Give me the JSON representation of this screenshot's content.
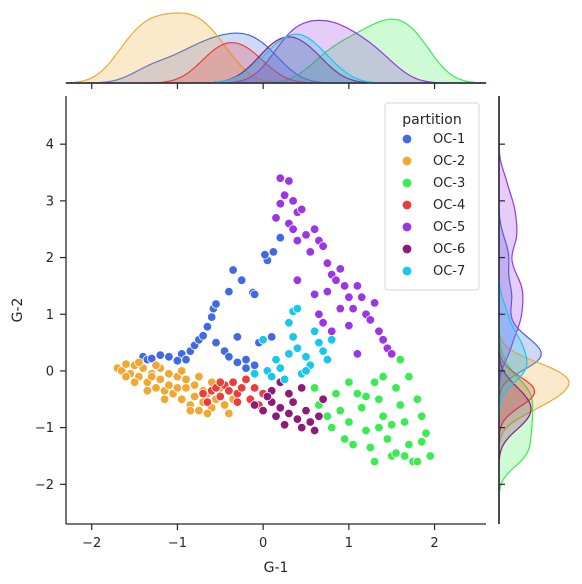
{
  "chart_data": {
    "type": "scatter",
    "subtype": "jointplot-with-marginal-kde",
    "xlabel": "G-1",
    "ylabel": "G-2",
    "xlim": [
      -2.3,
      2.6
    ],
    "ylim": [
      -2.7,
      4.85
    ],
    "xticks": [
      -2,
      -1,
      0,
      1,
      2
    ],
    "yticks": [
      -2,
      -1,
      0,
      1,
      2,
      3,
      4
    ],
    "grid": false,
    "legend": {
      "title": "partition",
      "placement": "top-right"
    },
    "series": [
      {
        "name": "OC-1",
        "color": "#4169e1",
        "points": [
          [
            -1.4,
            0.25
          ],
          [
            -1.35,
            0.2
          ],
          [
            -1.3,
            0.22
          ],
          [
            -1.2,
            0.28
          ],
          [
            -1.1,
            0.25
          ],
          [
            -0.95,
            0.3
          ],
          [
            -0.85,
            0.35
          ],
          [
            -0.8,
            0.45
          ],
          [
            -0.75,
            0.55
          ],
          [
            -0.7,
            0.62
          ],
          [
            -0.65,
            0.78
          ],
          [
            -0.6,
            0.95
          ],
          [
            -0.58,
            1.1
          ],
          [
            -0.55,
            1.18
          ],
          [
            -0.45,
            0.35
          ],
          [
            -0.4,
            0.25
          ],
          [
            -0.3,
            0.15
          ],
          [
            -0.2,
            0.05
          ],
          [
            -0.1,
            0.1
          ],
          [
            -0.25,
            1.6
          ],
          [
            -0.35,
            1.78
          ],
          [
            -0.12,
            1.38
          ],
          [
            0.05,
            1.95
          ],
          [
            0.12,
            2.1
          ],
          [
            0.2,
            2.35
          ],
          [
            0.02,
            2.05
          ],
          [
            -0.4,
            1.4
          ],
          [
            -0.55,
            0.5
          ],
          [
            -1.0,
            0.18
          ],
          [
            -0.9,
            0.2
          ],
          [
            -0.05,
            0.5
          ],
          [
            0.1,
            0.6
          ],
          [
            -0.1,
            1.35
          ],
          [
            -0.3,
            0.6
          ],
          [
            -0.2,
            0.2
          ]
        ]
      },
      {
        "name": "OC-2",
        "color": "#f0a832",
        "points": [
          [
            -1.7,
            0.05
          ],
          [
            -1.65,
            0.0
          ],
          [
            -1.6,
            0.12
          ],
          [
            -1.55,
            -0.05
          ],
          [
            -1.5,
            0.1
          ],
          [
            -1.45,
            -0.1
          ],
          [
            -1.4,
            0.05
          ],
          [
            -1.35,
            -0.2
          ],
          [
            -1.3,
            -0.05
          ],
          [
            -1.25,
            -0.3
          ],
          [
            -1.2,
            -0.15
          ],
          [
            -1.15,
            -0.35
          ],
          [
            -1.1,
            -0.25
          ],
          [
            -1.05,
            -0.4
          ],
          [
            -1.0,
            -0.1
          ],
          [
            -0.95,
            -0.5
          ],
          [
            -0.9,
            -0.3
          ],
          [
            -0.85,
            -0.6
          ],
          [
            -0.8,
            -0.45
          ],
          [
            -0.75,
            -0.7
          ],
          [
            -0.7,
            -0.55
          ],
          [
            -0.65,
            -0.4
          ],
          [
            -0.6,
            -0.65
          ],
          [
            -0.55,
            -0.5
          ],
          [
            -0.5,
            -0.3
          ],
          [
            -0.45,
            -0.6
          ],
          [
            -0.4,
            -0.75
          ],
          [
            -0.35,
            -0.5
          ],
          [
            -1.5,
            -0.2
          ],
          [
            -1.3,
            -0.1
          ],
          [
            -1.2,
            0.05
          ],
          [
            -1.1,
            -0.05
          ],
          [
            -1.0,
            -0.3
          ],
          [
            -0.9,
            -0.15
          ],
          [
            -0.8,
            -0.25
          ],
          [
            -0.7,
            -0.35
          ],
          [
            -0.6,
            -0.2
          ],
          [
            -1.6,
            -0.1
          ],
          [
            -1.45,
            0.15
          ],
          [
            -1.25,
            0.1
          ],
          [
            -0.95,
            0.0
          ],
          [
            -0.75,
            -0.1
          ],
          [
            -1.35,
            -0.35
          ],
          [
            -1.15,
            -0.5
          ],
          [
            -0.85,
            -0.7
          ],
          [
            -0.65,
            -0.75
          ]
        ]
      },
      {
        "name": "OC-3",
        "color": "#3aeb52",
        "points": [
          [
            0.6,
            -0.3
          ],
          [
            0.7,
            -0.5
          ],
          [
            0.75,
            -0.8
          ],
          [
            0.8,
            -1.0
          ],
          [
            0.85,
            -0.4
          ],
          [
            0.9,
            -0.7
          ],
          [
            1.0,
            -0.9
          ],
          [
            1.05,
            -1.3
          ],
          [
            1.1,
            -0.4
          ],
          [
            1.15,
            -0.65
          ],
          [
            1.2,
            -1.05
          ],
          [
            1.25,
            -1.35
          ],
          [
            1.3,
            -0.2
          ],
          [
            1.35,
            -0.5
          ],
          [
            1.4,
            -0.8
          ],
          [
            1.45,
            -1.2
          ],
          [
            1.5,
            -1.5
          ],
          [
            1.55,
            -0.3
          ],
          [
            1.6,
            -0.6
          ],
          [
            1.65,
            -0.9
          ],
          [
            1.7,
            -1.3
          ],
          [
            1.75,
            -1.6
          ],
          [
            1.8,
            -0.5
          ],
          [
            1.85,
            -0.8
          ],
          [
            1.9,
            -1.1
          ],
          [
            1.95,
            -1.5
          ],
          [
            1.7,
            -0.1
          ],
          [
            1.6,
            0.2
          ],
          [
            1.4,
            -0.1
          ],
          [
            1.3,
            -1.6
          ],
          [
            1.55,
            -1.45
          ],
          [
            1.85,
            -1.25
          ],
          [
            1.0,
            -0.2
          ],
          [
            1.2,
            -0.45
          ],
          [
            1.5,
            -0.95
          ],
          [
            1.65,
            -1.5
          ],
          [
            0.95,
            -1.2
          ],
          [
            1.35,
            -1.0
          ],
          [
            1.8,
            -1.6
          ],
          [
            0.65,
            -0.6
          ]
        ]
      },
      {
        "name": "OC-4",
        "color": "#ee3b3b",
        "points": [
          [
            -0.7,
            -0.4
          ],
          [
            -0.6,
            -0.35
          ],
          [
            -0.55,
            -0.3
          ],
          [
            -0.5,
            -0.45
          ],
          [
            -0.45,
            -0.25
          ],
          [
            -0.4,
            -0.35
          ],
          [
            -0.35,
            -0.2
          ],
          [
            -0.3,
            -0.4
          ],
          [
            -0.25,
            -0.3
          ],
          [
            -0.2,
            -0.15
          ],
          [
            -0.15,
            -0.5
          ],
          [
            -0.1,
            -0.3
          ],
          [
            -0.05,
            -0.6
          ],
          [
            0.0,
            -0.4
          ],
          [
            -0.3,
            -0.55
          ],
          [
            -0.5,
            -0.2
          ],
          [
            -0.65,
            -0.55
          ]
        ]
      },
      {
        "name": "OC-5",
        "color": "#9b35e6",
        "points": [
          [
            0.2,
            3.4
          ],
          [
            0.3,
            3.35
          ],
          [
            0.25,
            3.1
          ],
          [
            0.35,
            3.0
          ],
          [
            0.4,
            2.8
          ],
          [
            0.45,
            2.85
          ],
          [
            0.3,
            2.6
          ],
          [
            0.35,
            2.5
          ],
          [
            0.4,
            2.3
          ],
          [
            0.5,
            2.4
          ],
          [
            0.55,
            2.1
          ],
          [
            0.6,
            2.5
          ],
          [
            0.65,
            2.3
          ],
          [
            0.7,
            2.2
          ],
          [
            0.75,
            1.9
          ],
          [
            0.8,
            1.7
          ],
          [
            0.85,
            1.6
          ],
          [
            0.9,
            1.8
          ],
          [
            0.95,
            1.5
          ],
          [
            1.0,
            1.3
          ],
          [
            1.05,
            1.1
          ],
          [
            1.1,
            1.5
          ],
          [
            1.15,
            1.3
          ],
          [
            1.2,
            1.0
          ],
          [
            1.25,
            0.9
          ],
          [
            1.3,
            1.2
          ],
          [
            1.35,
            0.7
          ],
          [
            1.4,
            0.55
          ],
          [
            1.45,
            0.4
          ],
          [
            1.5,
            0.3
          ],
          [
            0.65,
            1.0
          ],
          [
            0.7,
            0.85
          ],
          [
            0.8,
            0.7
          ],
          [
            0.9,
            1.1
          ],
          [
            1.0,
            0.8
          ],
          [
            0.6,
            1.35
          ],
          [
            0.75,
            1.4
          ],
          [
            0.2,
            2.95
          ],
          [
            0.15,
            2.7
          ],
          [
            1.1,
            0.3
          ],
          [
            0.4,
            1.6
          ]
        ]
      },
      {
        "name": "OC-6",
        "color": "#8e1a7a",
        "points": [
          [
            -0.1,
            -0.6
          ],
          [
            0.0,
            -0.7
          ],
          [
            0.1,
            -0.55
          ],
          [
            0.15,
            -0.8
          ],
          [
            0.2,
            -0.65
          ],
          [
            0.25,
            -0.95
          ],
          [
            0.3,
            -0.75
          ],
          [
            0.35,
            -0.55
          ],
          [
            0.4,
            -0.85
          ],
          [
            0.45,
            -1.0
          ],
          [
            0.5,
            -0.7
          ],
          [
            0.55,
            -0.9
          ],
          [
            0.6,
            -1.05
          ],
          [
            0.65,
            -0.8
          ],
          [
            0.7,
            -0.5
          ],
          [
            0.1,
            -0.35
          ],
          [
            0.3,
            -0.4
          ],
          [
            0.2,
            -0.2
          ],
          [
            0.05,
            -0.45
          ],
          [
            0.45,
            -0.3
          ]
        ]
      },
      {
        "name": "OC-7",
        "color": "#16c8f0",
        "points": [
          [
            0.0,
            0.55
          ],
          [
            0.05,
            0.0
          ],
          [
            0.1,
            -0.1
          ],
          [
            0.15,
            0.2
          ],
          [
            0.2,
            0.05
          ],
          [
            0.25,
            -0.15
          ],
          [
            0.3,
            0.3
          ],
          [
            0.35,
            0.6
          ],
          [
            0.4,
            0.4
          ],
          [
            0.45,
            -0.05
          ],
          [
            0.5,
            0.25
          ],
          [
            0.55,
            0.1
          ],
          [
            0.6,
            0.7
          ],
          [
            0.65,
            0.5
          ],
          [
            0.7,
            0.35
          ],
          [
            0.75,
            0.2
          ],
          [
            0.8,
            0.55
          ],
          [
            0.35,
            1.05
          ],
          [
            0.4,
            1.1
          ],
          [
            0.3,
            0.85
          ],
          [
            -0.1,
            -0.05
          ],
          [
            0.5,
            0.0
          ]
        ]
      }
    ]
  }
}
